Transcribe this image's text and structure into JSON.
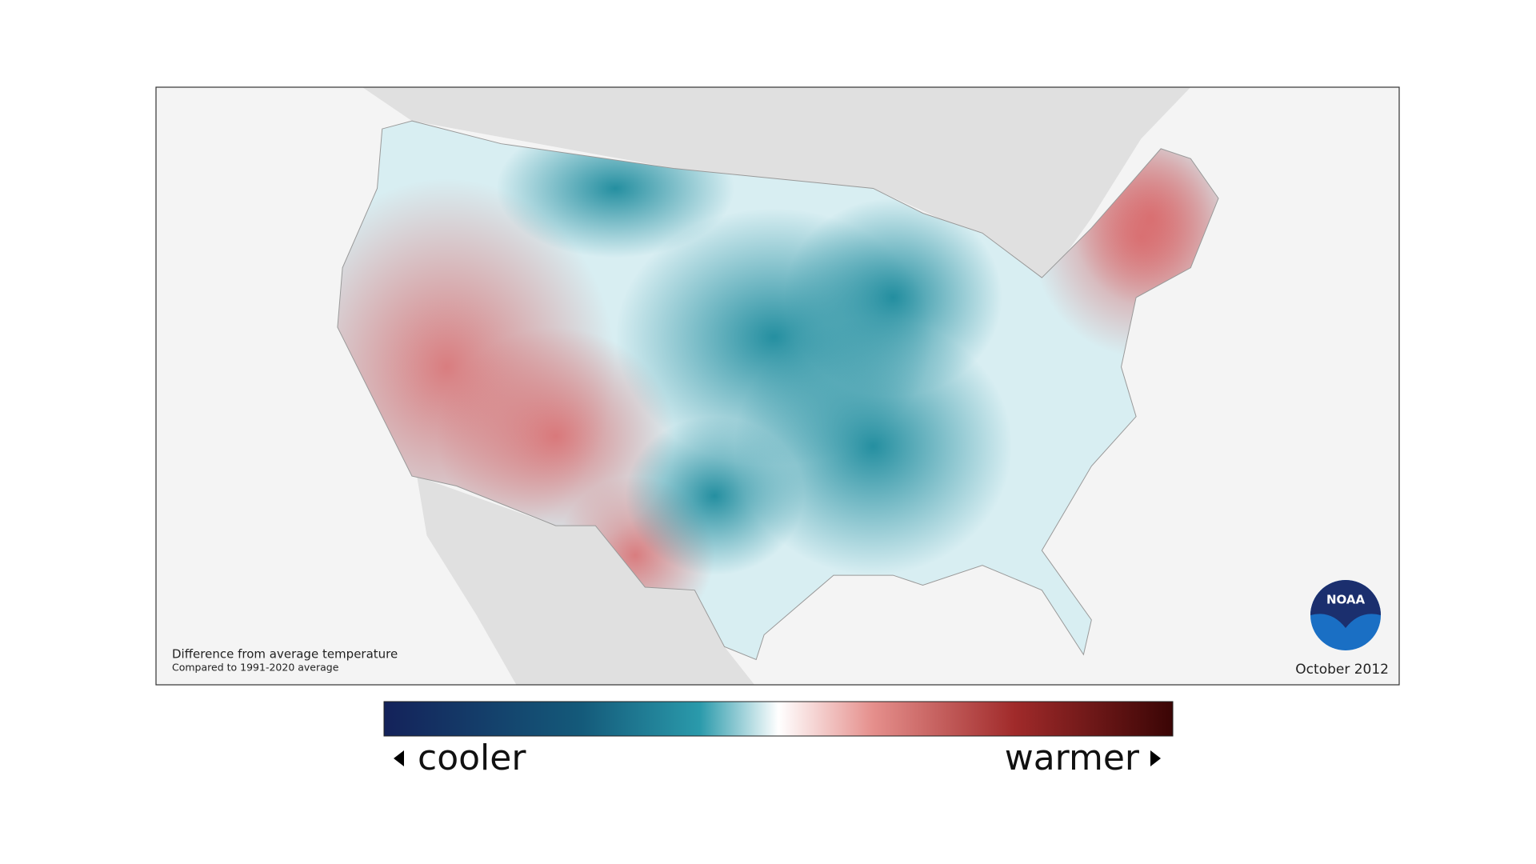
{
  "map": {
    "caption_title": "Difference from average temperature",
    "caption_subtitle": "Compared to 1991-2020 average",
    "date": "October 2012",
    "logo_text": "NOAA"
  },
  "legend": {
    "low_label": "cooler",
    "high_label": "warmer"
  }
}
